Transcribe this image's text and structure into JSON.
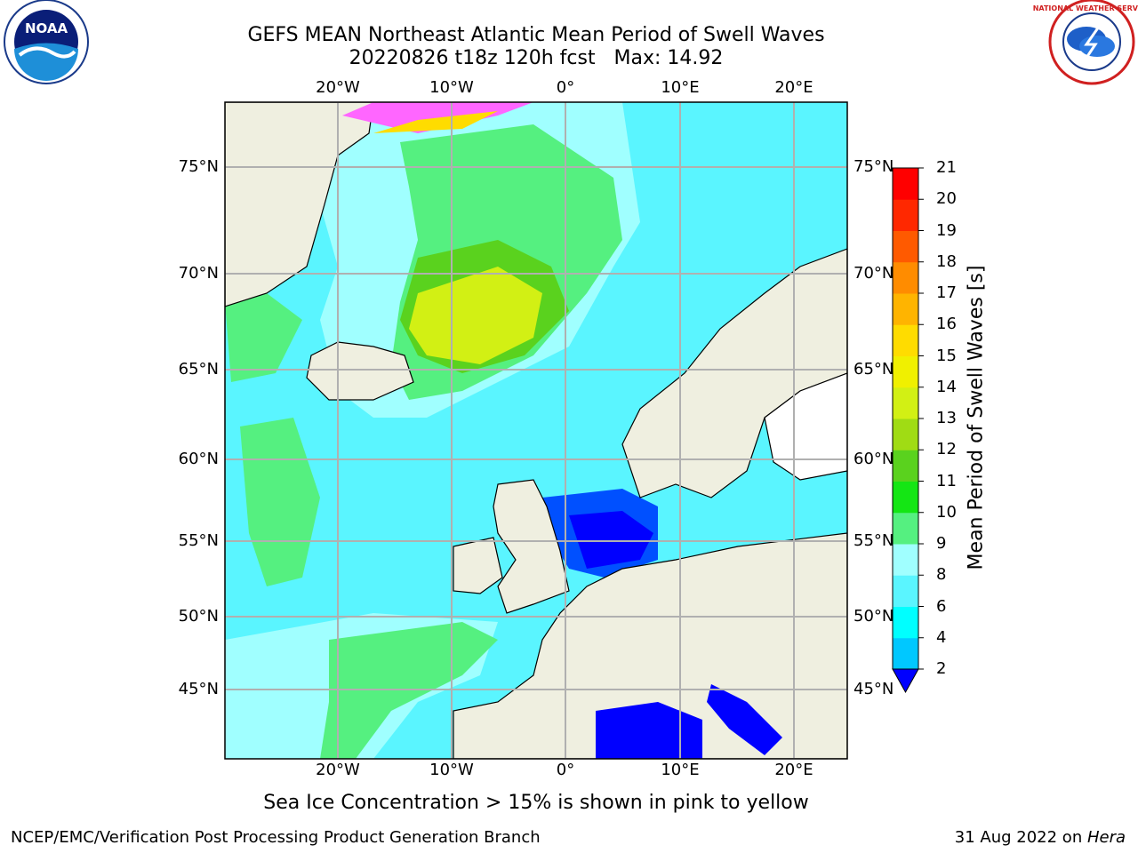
{
  "title": {
    "line1": "GEFS MEAN Northeast Atlantic Mean Period of Swell Waves",
    "line2": "20220826 t18z 120h fcst   Max: 14.92"
  },
  "logos": {
    "noara": "NOAA",
    "nws": "NATIONAL WEATHER SERVICE"
  },
  "map": {
    "lon_ticks": [
      "20°W",
      "10°W",
      "0°",
      "10°E",
      "20°E"
    ],
    "lat_ticks": [
      "75°N",
      "70°N",
      "65°N",
      "60°N",
      "55°N",
      "50°N",
      "45°N"
    ]
  },
  "colorbar": {
    "label": "Mean Period of Swell Waves [s]",
    "ticks": [
      "2",
      "4",
      "6",
      "8",
      "9",
      "10",
      "11",
      "12",
      "13",
      "14",
      "15",
      "16",
      "17",
      "18",
      "19",
      "20",
      "21"
    ],
    "colors": [
      "#0050ff",
      "#00c8ff",
      "#00ffff",
      "#5af5ff",
      "#a0ffff",
      "#55f080",
      "#14e614",
      "#5ad21e",
      "#a0dc14",
      "#d2f014",
      "#f0f000",
      "#ffdc00",
      "#ffb400",
      "#ff8c00",
      "#ff5a00",
      "#ff2800",
      "#ff0000"
    ],
    "extend_color": "#0000ff"
  },
  "sea_ice_note": "Sea Ice Concentration > 15% is shown in pink to yellow",
  "footer": {
    "left": "NCEP/EMC/Verification Post Processing Product Generation Branch",
    "right_prefix": "31 Aug 2022 on ",
    "right_machine": "Hera"
  }
}
